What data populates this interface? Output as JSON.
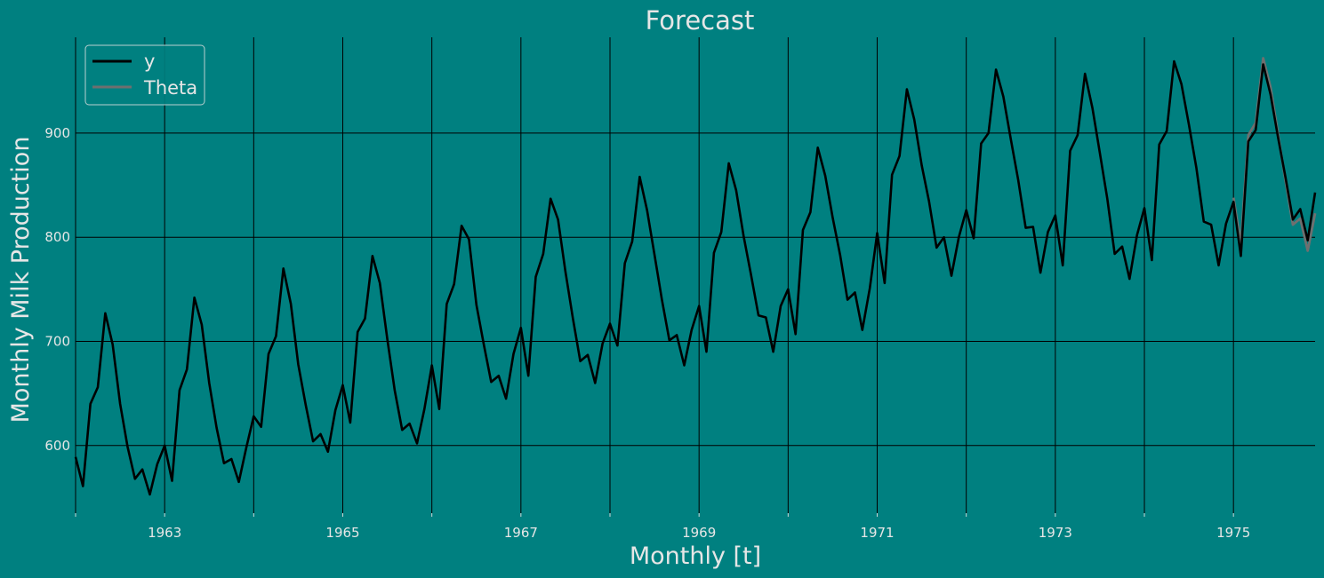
{
  "chart_data": {
    "type": "line",
    "title": "Forecast",
    "xlabel": "Monthly [t]",
    "ylabel": "Monthly Milk Production",
    "x_start": "1962-01",
    "x_end": "1975-12",
    "xlim": [
      "1962-01",
      "1975-12"
    ],
    "ylim": [
      535,
      992
    ],
    "x_ticks": [
      "1963",
      "1965",
      "1967",
      "1969",
      "1971",
      "1973",
      "1975"
    ],
    "y_ticks": [
      600,
      700,
      800,
      900
    ],
    "grid": true,
    "legend_position": "top-left",
    "series": [
      {
        "name": "y",
        "color": "#000000",
        "start": "1962-01",
        "values": [
          589,
          561,
          640,
          656,
          727,
          697,
          640,
          599,
          568,
          577,
          553,
          582,
          600,
          566,
          653,
          673,
          742,
          716,
          660,
          617,
          583,
          587,
          565,
          598,
          628,
          618,
          688,
          705,
          770,
          736,
          678,
          639,
          604,
          611,
          594,
          634,
          658,
          622,
          709,
          722,
          782,
          756,
          702,
          653,
          615,
          621,
          602,
          635,
          677,
          635,
          736,
          755,
          811,
          798,
          735,
          697,
          661,
          667,
          645,
          688,
          713,
          667,
          762,
          784,
          837,
          817,
          767,
          722,
          681,
          687,
          660,
          698,
          717,
          696,
          775,
          796,
          858,
          826,
          783,
          740,
          701,
          706,
          677,
          711,
          734,
          690,
          785,
          805,
          871,
          845,
          801,
          764,
          725,
          723,
          690,
          734,
          750,
          707,
          807,
          824,
          886,
          859,
          819,
          783,
          740,
          747,
          711,
          751,
          804,
          756,
          860,
          878,
          942,
          913,
          869,
          834,
          790,
          800,
          763,
          800,
          826,
          799,
          890,
          900,
          961,
          935,
          894,
          855,
          809,
          810,
          766,
          805,
          821,
          773,
          883,
          898,
          957,
          924,
          881,
          837,
          784,
          791,
          760,
          802,
          828,
          778,
          889,
          902,
          969,
          947,
          908,
          867,
          815,
          812,
          773,
          813,
          834,
          782,
          892,
          903,
          966,
          937,
          896,
          858,
          817,
          827,
          797,
          843
        ]
      },
      {
        "name": "Theta",
        "color": "#6f6f6f",
        "start": "1975-01",
        "values": [
          838,
          793,
          898,
          910,
          972,
          944,
          899,
          855,
          812,
          818,
          787,
          823
        ]
      }
    ]
  }
}
